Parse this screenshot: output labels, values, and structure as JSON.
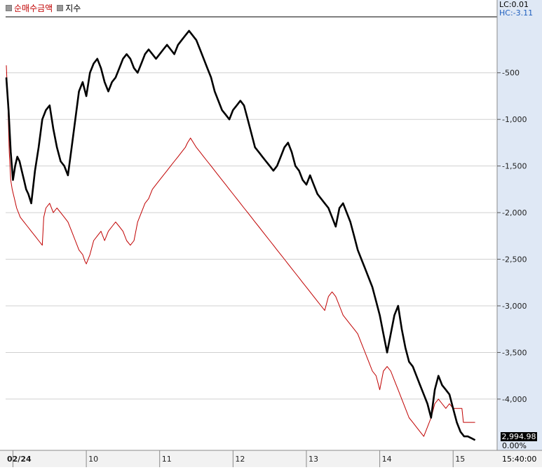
{
  "legend": {
    "series1_label": "순매수금액",
    "series2_label": "지수"
  },
  "corner": {
    "lc": "LC:0.01",
    "hc": "HC:-3.11"
  },
  "last_value": "2,994.98",
  "last_pct": "0.00%",
  "end_time": "15:40:00",
  "colors": {
    "series1": "#c00000",
    "series2": "#000000",
    "axis_bg": "#dfe8f5"
  },
  "chart_data": {
    "type": "line",
    "y_ticks": [
      {
        "value": -500,
        "label": "-500"
      },
      {
        "value": -1000,
        "label": "-1,000"
      },
      {
        "value": -1500,
        "label": "-1,500"
      },
      {
        "value": -2000,
        "label": "-2,000"
      },
      {
        "value": -2500,
        "label": "-2,500"
      },
      {
        "value": -3000,
        "label": "-3,000"
      },
      {
        "value": -3500,
        "label": "-3,500"
      },
      {
        "value": -4000,
        "label": "-4,000"
      }
    ],
    "ylim": [
      -4550,
      100
    ],
    "x_ticks": [
      {
        "pos": 0.0,
        "label": "02/24"
      },
      {
        "pos": 1.0,
        "label": "10"
      },
      {
        "pos": 2.0,
        "label": "11"
      },
      {
        "pos": 3.0,
        "label": "12"
      },
      {
        "pos": 4.0,
        "label": "13"
      },
      {
        "pos": 5.0,
        "label": "14"
      },
      {
        "pos": 6.0,
        "label": "15"
      }
    ],
    "xlim": [
      -0.1,
      6.6
    ],
    "series": [
      {
        "name": "순매수금액",
        "points": [
          [
            -0.09,
            -420
          ],
          [
            -0.07,
            -800
          ],
          [
            -0.05,
            -1350
          ],
          [
            -0.03,
            -1650
          ],
          [
            -0.01,
            -1750
          ],
          [
            0.02,
            -1850
          ],
          [
            0.05,
            -1950
          ],
          [
            0.1,
            -2050
          ],
          [
            0.15,
            -2100
          ],
          [
            0.2,
            -2150
          ],
          [
            0.25,
            -2200
          ],
          [
            0.3,
            -2250
          ],
          [
            0.35,
            -2300
          ],
          [
            0.4,
            -2350
          ],
          [
            0.42,
            -2050
          ],
          [
            0.45,
            -1950
          ],
          [
            0.5,
            -1900
          ],
          [
            0.55,
            -2000
          ],
          [
            0.6,
            -1950
          ],
          [
            0.65,
            -2000
          ],
          [
            0.7,
            -2050
          ],
          [
            0.75,
            -2100
          ],
          [
            0.8,
            -2200
          ],
          [
            0.85,
            -2300
          ],
          [
            0.9,
            -2400
          ],
          [
            0.95,
            -2450
          ],
          [
            0.98,
            -2520
          ],
          [
            1.0,
            -2550
          ],
          [
            1.05,
            -2450
          ],
          [
            1.1,
            -2300
          ],
          [
            1.15,
            -2250
          ],
          [
            1.2,
            -2200
          ],
          [
            1.25,
            -2300
          ],
          [
            1.3,
            -2200
          ],
          [
            1.35,
            -2150
          ],
          [
            1.4,
            -2100
          ],
          [
            1.45,
            -2150
          ],
          [
            1.5,
            -2200
          ],
          [
            1.55,
            -2300
          ],
          [
            1.6,
            -2350
          ],
          [
            1.65,
            -2300
          ],
          [
            1.7,
            -2100
          ],
          [
            1.75,
            -2000
          ],
          [
            1.8,
            -1900
          ],
          [
            1.85,
            -1850
          ],
          [
            1.9,
            -1750
          ],
          [
            1.95,
            -1700
          ],
          [
            2.0,
            -1650
          ],
          [
            2.05,
            -1600
          ],
          [
            2.1,
            -1550
          ],
          [
            2.15,
            -1500
          ],
          [
            2.2,
            -1450
          ],
          [
            2.25,
            -1400
          ],
          [
            2.3,
            -1350
          ],
          [
            2.35,
            -1300
          ],
          [
            2.38,
            -1250
          ],
          [
            2.42,
            -1200
          ],
          [
            2.46,
            -1250
          ],
          [
            2.5,
            -1300
          ],
          [
            2.55,
            -1350
          ],
          [
            2.6,
            -1400
          ],
          [
            2.65,
            -1450
          ],
          [
            2.7,
            -1500
          ],
          [
            2.75,
            -1550
          ],
          [
            2.8,
            -1600
          ],
          [
            2.85,
            -1650
          ],
          [
            2.9,
            -1700
          ],
          [
            2.95,
            -1750
          ],
          [
            3.0,
            -1800
          ],
          [
            3.05,
            -1850
          ],
          [
            3.1,
            -1900
          ],
          [
            3.15,
            -1950
          ],
          [
            3.2,
            -2000
          ],
          [
            3.25,
            -2050
          ],
          [
            3.3,
            -2100
          ],
          [
            3.35,
            -2150
          ],
          [
            3.4,
            -2200
          ],
          [
            3.45,
            -2250
          ],
          [
            3.5,
            -2300
          ],
          [
            3.55,
            -2350
          ],
          [
            3.6,
            -2400
          ],
          [
            3.65,
            -2450
          ],
          [
            3.7,
            -2500
          ],
          [
            3.75,
            -2550
          ],
          [
            3.8,
            -2600
          ],
          [
            3.85,
            -2650
          ],
          [
            3.9,
            -2700
          ],
          [
            3.95,
            -2750
          ],
          [
            4.0,
            -2800
          ],
          [
            4.05,
            -2850
          ],
          [
            4.1,
            -2900
          ],
          [
            4.15,
            -2950
          ],
          [
            4.2,
            -3000
          ],
          [
            4.25,
            -3050
          ],
          [
            4.3,
            -2900
          ],
          [
            4.35,
            -2850
          ],
          [
            4.4,
            -2900
          ],
          [
            4.45,
            -3000
          ],
          [
            4.5,
            -3100
          ],
          [
            4.55,
            -3150
          ],
          [
            4.6,
            -3200
          ],
          [
            4.65,
            -3250
          ],
          [
            4.7,
            -3300
          ],
          [
            4.75,
            -3400
          ],
          [
            4.8,
            -3500
          ],
          [
            4.85,
            -3600
          ],
          [
            4.9,
            -3700
          ],
          [
            4.95,
            -3750
          ],
          [
            5.0,
            -3900
          ],
          [
            5.05,
            -3700
          ],
          [
            5.1,
            -3650
          ],
          [
            5.15,
            -3700
          ],
          [
            5.2,
            -3800
          ],
          [
            5.25,
            -3900
          ],
          [
            5.3,
            -4000
          ],
          [
            5.35,
            -4100
          ],
          [
            5.4,
            -4200
          ],
          [
            5.45,
            -4250
          ],
          [
            5.5,
            -4300
          ],
          [
            5.55,
            -4350
          ],
          [
            5.6,
            -4400
          ],
          [
            5.65,
            -4300
          ],
          [
            5.7,
            -4200
          ],
          [
            5.75,
            -4050
          ],
          [
            5.8,
            -4000
          ],
          [
            5.85,
            -4050
          ],
          [
            5.9,
            -4100
          ],
          [
            5.95,
            -4050
          ],
          [
            6.0,
            -4100
          ],
          [
            6.05,
            -4100
          ],
          [
            6.1,
            -4100
          ],
          [
            6.12,
            -4100
          ],
          [
            6.14,
            -4250
          ],
          [
            6.3,
            -4250
          ]
        ]
      },
      {
        "name": "지수",
        "points": [
          [
            -0.09,
            -550
          ],
          [
            -0.06,
            -900
          ],
          [
            -0.03,
            -1350
          ],
          [
            0.0,
            -1650
          ],
          [
            0.03,
            -1500
          ],
          [
            0.06,
            -1400
          ],
          [
            0.09,
            -1450
          ],
          [
            0.12,
            -1550
          ],
          [
            0.15,
            -1650
          ],
          [
            0.18,
            -1750
          ],
          [
            0.21,
            -1800
          ],
          [
            0.25,
            -1900
          ],
          [
            0.3,
            -1550
          ],
          [
            0.35,
            -1300
          ],
          [
            0.4,
            -1000
          ],
          [
            0.45,
            -900
          ],
          [
            0.5,
            -850
          ],
          [
            0.55,
            -1100
          ],
          [
            0.6,
            -1300
          ],
          [
            0.65,
            -1450
          ],
          [
            0.7,
            -1500
          ],
          [
            0.75,
            -1600
          ],
          [
            0.8,
            -1300
          ],
          [
            0.85,
            -1000
          ],
          [
            0.9,
            -700
          ],
          [
            0.95,
            -600
          ],
          [
            1.0,
            -750
          ],
          [
            1.05,
            -500
          ],
          [
            1.1,
            -400
          ],
          [
            1.15,
            -350
          ],
          [
            1.2,
            -450
          ],
          [
            1.25,
            -600
          ],
          [
            1.3,
            -700
          ],
          [
            1.35,
            -600
          ],
          [
            1.4,
            -550
          ],
          [
            1.45,
            -450
          ],
          [
            1.5,
            -350
          ],
          [
            1.55,
            -300
          ],
          [
            1.6,
            -350
          ],
          [
            1.65,
            -450
          ],
          [
            1.7,
            -500
          ],
          [
            1.75,
            -400
          ],
          [
            1.8,
            -300
          ],
          [
            1.85,
            -250
          ],
          [
            1.9,
            -300
          ],
          [
            1.95,
            -350
          ],
          [
            2.0,
            -300
          ],
          [
            2.05,
            -250
          ],
          [
            2.1,
            -200
          ],
          [
            2.15,
            -250
          ],
          [
            2.2,
            -300
          ],
          [
            2.25,
            -200
          ],
          [
            2.3,
            -150
          ],
          [
            2.35,
            -100
          ],
          [
            2.4,
            -50
          ],
          [
            2.45,
            -100
          ],
          [
            2.5,
            -150
          ],
          [
            2.55,
            -250
          ],
          [
            2.6,
            -350
          ],
          [
            2.65,
            -450
          ],
          [
            2.7,
            -550
          ],
          [
            2.75,
            -700
          ],
          [
            2.8,
            -800
          ],
          [
            2.85,
            -900
          ],
          [
            2.9,
            -950
          ],
          [
            2.95,
            -1000
          ],
          [
            3.0,
            -900
          ],
          [
            3.05,
            -850
          ],
          [
            3.1,
            -800
          ],
          [
            3.15,
            -850
          ],
          [
            3.2,
            -1000
          ],
          [
            3.25,
            -1150
          ],
          [
            3.3,
            -1300
          ],
          [
            3.35,
            -1350
          ],
          [
            3.4,
            -1400
          ],
          [
            3.45,
            -1450
          ],
          [
            3.5,
            -1500
          ],
          [
            3.55,
            -1550
          ],
          [
            3.6,
            -1500
          ],
          [
            3.65,
            -1400
          ],
          [
            3.7,
            -1300
          ],
          [
            3.75,
            -1250
          ],
          [
            3.8,
            -1350
          ],
          [
            3.85,
            -1500
          ],
          [
            3.9,
            -1550
          ],
          [
            3.95,
            -1650
          ],
          [
            4.0,
            -1700
          ],
          [
            4.05,
            -1600
          ],
          [
            4.1,
            -1700
          ],
          [
            4.15,
            -1800
          ],
          [
            4.2,
            -1850
          ],
          [
            4.25,
            -1900
          ],
          [
            4.3,
            -1950
          ],
          [
            4.35,
            -2050
          ],
          [
            4.4,
            -2150
          ],
          [
            4.45,
            -1950
          ],
          [
            4.5,
            -1900
          ],
          [
            4.55,
            -2000
          ],
          [
            4.6,
            -2100
          ],
          [
            4.65,
            -2250
          ],
          [
            4.7,
            -2400
          ],
          [
            4.75,
            -2500
          ],
          [
            4.8,
            -2600
          ],
          [
            4.85,
            -2700
          ],
          [
            4.9,
            -2800
          ],
          [
            4.95,
            -2950
          ],
          [
            5.0,
            -3100
          ],
          [
            5.05,
            -3300
          ],
          [
            5.1,
            -3500
          ],
          [
            5.15,
            -3300
          ],
          [
            5.2,
            -3100
          ],
          [
            5.25,
            -3000
          ],
          [
            5.3,
            -3250
          ],
          [
            5.35,
            -3450
          ],
          [
            5.4,
            -3600
          ],
          [
            5.45,
            -3650
          ],
          [
            5.5,
            -3750
          ],
          [
            5.55,
            -3850
          ],
          [
            5.6,
            -3950
          ],
          [
            5.65,
            -4050
          ],
          [
            5.7,
            -4200
          ],
          [
            5.75,
            -3900
          ],
          [
            5.8,
            -3750
          ],
          [
            5.85,
            -3850
          ],
          [
            5.9,
            -3900
          ],
          [
            5.95,
            -3950
          ],
          [
            6.0,
            -4100
          ],
          [
            6.05,
            -4250
          ],
          [
            6.1,
            -4350
          ],
          [
            6.15,
            -4400
          ],
          [
            6.2,
            -4400
          ],
          [
            6.25,
            -4420
          ],
          [
            6.3,
            -4440
          ]
        ]
      }
    ]
  }
}
